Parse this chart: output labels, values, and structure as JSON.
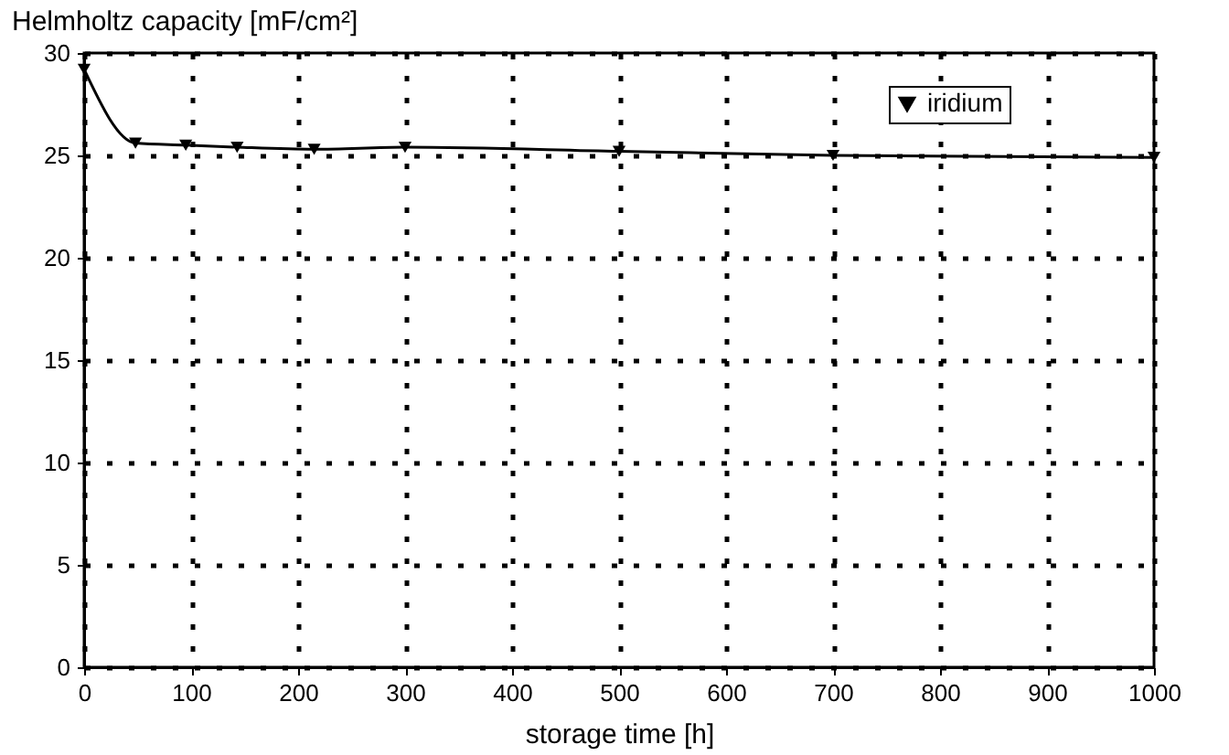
{
  "chart_data": {
    "type": "line",
    "xlabel": "storage time [h]",
    "ylabel": "Helmholtz capacity [mF/cm²]",
    "x": [
      0,
      48,
      95,
      143,
      215,
      300,
      500,
      700,
      1000
    ],
    "series": [
      {
        "name": "iridium",
        "color": "#000000",
        "values": [
          29.2,
          25.6,
          25.5,
          25.4,
          25.3,
          25.4,
          25.2,
          25.0,
          24.9
        ]
      }
    ],
    "xlim": [
      0,
      1000
    ],
    "xticks": [
      0,
      100,
      200,
      300,
      400,
      500,
      600,
      700,
      800,
      900,
      1000
    ],
    "ylim": [
      0,
      30
    ],
    "yticks": [
      0,
      5,
      10,
      15,
      20,
      25,
      30
    ],
    "grid": true,
    "legend": "top right",
    "marker": "triangle",
    "line_style": "solid"
  }
}
